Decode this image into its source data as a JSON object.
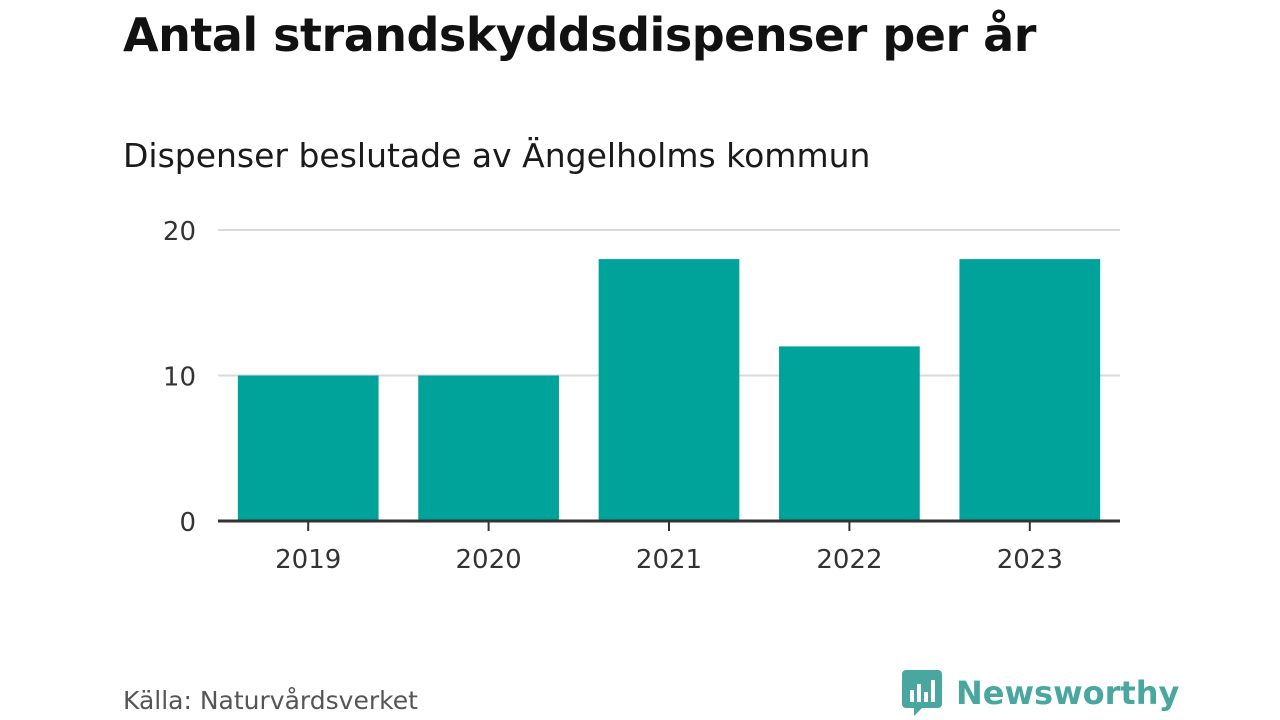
{
  "header": {
    "title": "Antal strandskyddsdispenser per år",
    "subtitle": "Dispenser beslutade av Ängelholms kommun"
  },
  "footer": {
    "source": "Källa: Naturvårdsverket",
    "brand": "Newsworthy"
  },
  "colors": {
    "bar": "#00a39a",
    "grid": "#d9d9d9",
    "axis": "#333333",
    "brand": "#4aa79f"
  },
  "icons": {
    "brand_icon": "newsworthy-logo-icon"
  },
  "chart_data": {
    "type": "bar",
    "title": "Antal strandskyddsdispenser per år",
    "subtitle": "Dispenser beslutade av Ängelholms kommun",
    "categories": [
      "2019",
      "2020",
      "2021",
      "2022",
      "2023"
    ],
    "values": [
      10,
      10,
      18,
      12,
      18
    ],
    "xlabel": "",
    "ylabel": "",
    "ylim": [
      0,
      20
    ],
    "yticks": [
      0,
      10,
      20
    ],
    "grid": true,
    "legend": "none"
  }
}
